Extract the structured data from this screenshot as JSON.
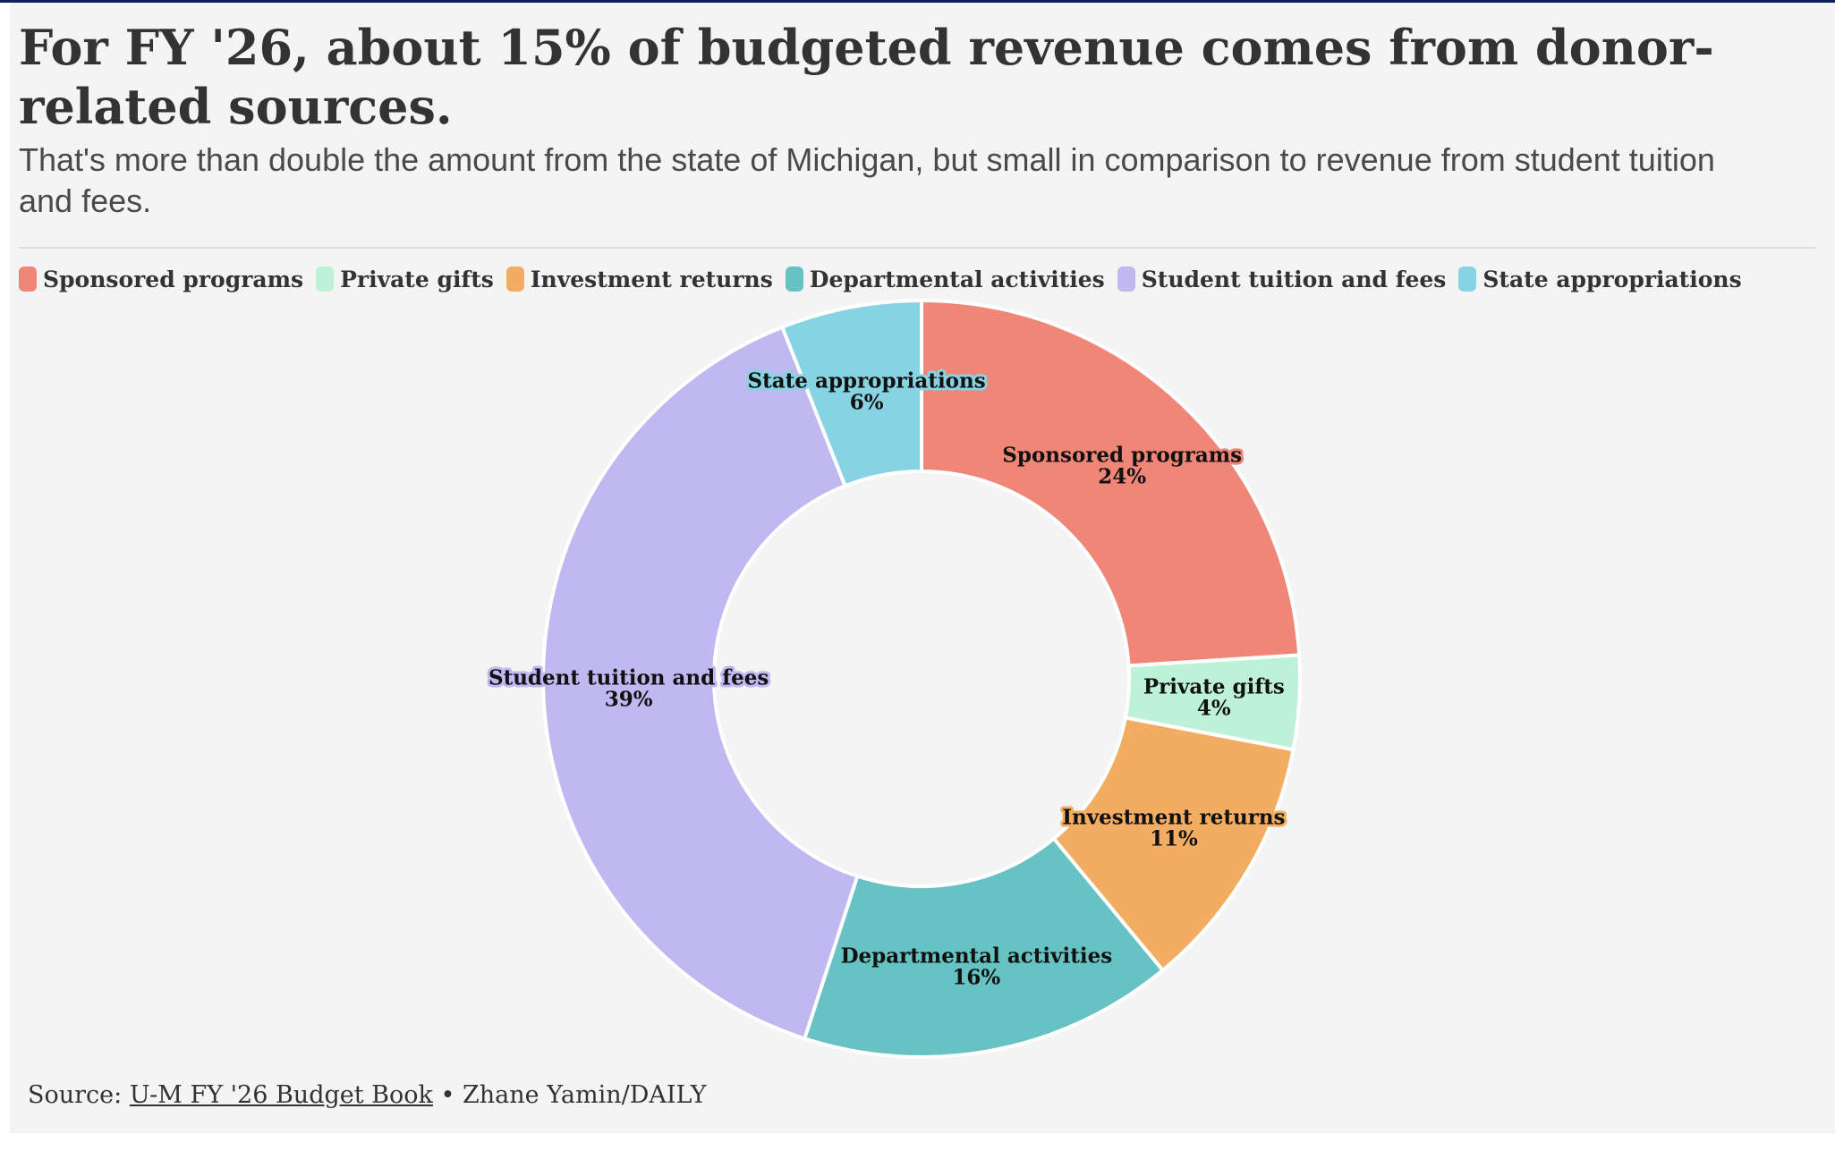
{
  "header": {
    "title": "For FY '26, about 15% of budgeted revenue comes from donor-related sources.",
    "subtitle": "That's more than double the amount from the state of Michigan, but small in comparison to revenue from student tuition and fees."
  },
  "footer": {
    "source_prefix": "Source: ",
    "source_link": "U-M FY '26 Budget Book",
    "source_suffix": " • Zhane Yamin/DAILY"
  },
  "chart_data": {
    "type": "pie",
    "donut": true,
    "title": "For FY '26, about 15% of budgeted revenue comes from donor-related sources.",
    "legend_position": "top-left",
    "series": [
      {
        "name": "Sponsored programs",
        "value": 24,
        "label": "24%",
        "color": "#ef8677"
      },
      {
        "name": "Private gifts",
        "value": 4,
        "label": "4%",
        "color": "#bdf2d6"
      },
      {
        "name": "Investment returns",
        "value": 11,
        "label": "11%",
        "color": "#f2ad62"
      },
      {
        "name": "Departmental activities",
        "value": 16,
        "label": "16%",
        "color": "#67c3c3"
      },
      {
        "name": "Student tuition and fees",
        "value": 39,
        "label": "39%",
        "color": "#c0b8f0"
      },
      {
        "name": "State appropriations",
        "value": 6,
        "label": "6%",
        "color": "#86d3e3"
      }
    ]
  }
}
